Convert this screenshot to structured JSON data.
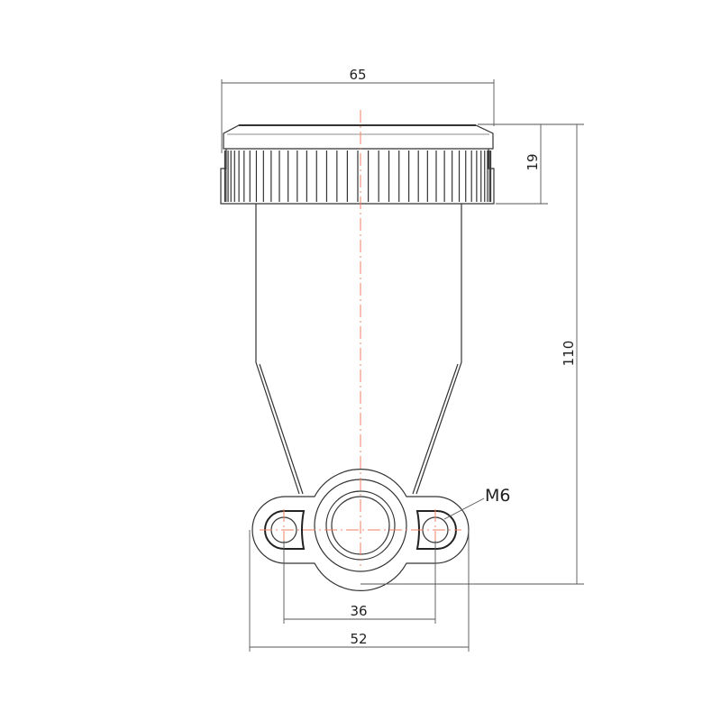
{
  "drawing": {
    "dimensions": {
      "cap_diameter": "65",
      "cap_height": "19",
      "total_height": "110",
      "hole_spacing": "36",
      "base_width": "52"
    },
    "thread_label": "M6",
    "colors": {
      "centerline": "#f08060",
      "outline": "#333333"
    }
  }
}
